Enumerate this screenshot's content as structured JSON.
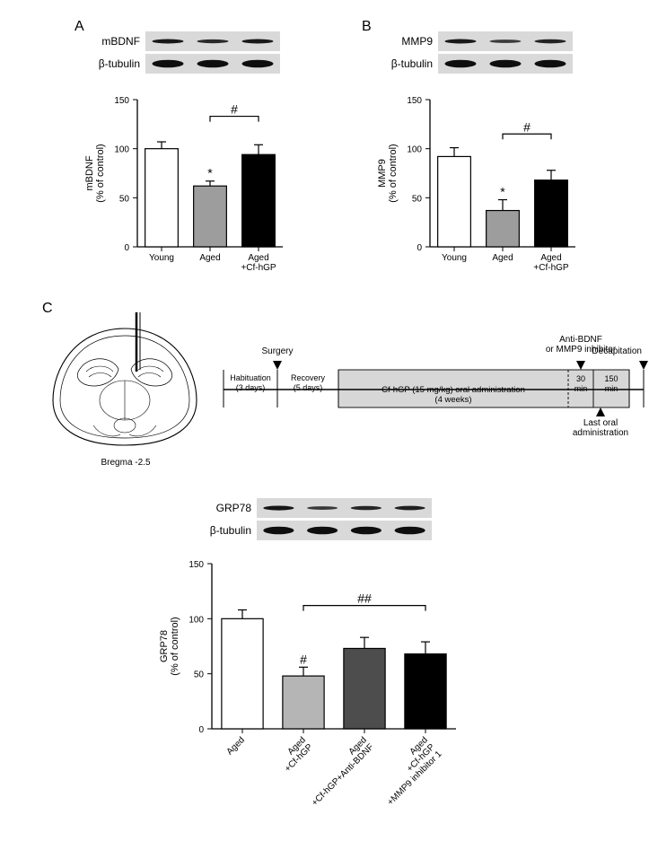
{
  "panels": {
    "A": {
      "label": "A",
      "blot1_label": "mBDNF",
      "blot2_label": "β-tubulin",
      "lanes": 3,
      "blot1_intensities": [
        0.8,
        0.55,
        0.78
      ],
      "blot2_intensities": [
        0.95,
        0.95,
        0.95
      ],
      "chart": {
        "type": "bar",
        "ylabel": "mBDNF\n(% of control)",
        "categories": [
          "Young",
          "Aged",
          "Aged\n+Cf-hGP"
        ],
        "values": [
          100,
          62,
          94
        ],
        "errors": [
          7,
          5,
          10
        ],
        "ylim": [
          0,
          150
        ],
        "ytick_step": 50,
        "bar_fill": [
          "#ffffff",
          "#9d9d9d",
          "#000000"
        ],
        "bar_stroke": "#000000",
        "sig_above_bar": [
          "",
          "*",
          ""
        ],
        "bracket": {
          "from": 1,
          "to": 2,
          "label": "#",
          "y": 133
        }
      }
    },
    "B": {
      "label": "B",
      "blot1_label": "MMP9",
      "blot2_label": "β-tubulin",
      "lanes": 3,
      "blot1_intensities": [
        0.8,
        0.3,
        0.65
      ],
      "blot2_intensities": [
        0.95,
        0.95,
        0.95
      ],
      "chart": {
        "type": "bar",
        "ylabel": "MMP9\n(% of control)",
        "categories": [
          "Young",
          "Aged",
          "Aged\n+Cf-hGP"
        ],
        "values": [
          92,
          37,
          68
        ],
        "errors": [
          9,
          11,
          10
        ],
        "ylim": [
          0,
          150
        ],
        "ytick_step": 50,
        "bar_fill": [
          "#ffffff",
          "#9d9d9d",
          "#000000"
        ],
        "bar_stroke": "#000000",
        "sig_above_bar": [
          "",
          "*",
          ""
        ],
        "bracket": {
          "from": 1,
          "to": 2,
          "label": "#",
          "y": 115
        }
      }
    },
    "C": {
      "label": "C",
      "brain_caption": "Bregma  -2.5",
      "timeline": {
        "habituation": "Habituation\n(3 days)",
        "surgery": "Surgery",
        "recovery": "Recovery\n(5 days)",
        "treatment": "Cf-hGP (15 mg/kg) oral administration\n(4 weeks)",
        "inject": "Anti-BDNF\nor MMP9 inhibitor",
        "interval1": "30\nmin",
        "interval2": "150\nmin",
        "last": "Last oral\nadministration",
        "decap": "Decapitation"
      },
      "blot1_label": "GRP78",
      "blot2_label": "β-tubulin",
      "lanes": 4,
      "blot1_intensities": [
        0.85,
        0.35,
        0.62,
        0.7
      ],
      "blot2_intensities": [
        0.95,
        0.95,
        0.95,
        0.95
      ],
      "chart": {
        "type": "bar",
        "ylabel": "GRP78\n(% of control)",
        "categories": [
          "Aged",
          "Aged\n+Cf-hGP",
          "Aged\n+Cf-hGP+Anti-BDNF",
          "Aged\n+Cf-hGP\n+MMP9 inhibitor 1"
        ],
        "values": [
          100,
          48,
          73,
          68
        ],
        "errors": [
          8,
          8,
          10,
          11
        ],
        "ylim": [
          0,
          150
        ],
        "ytick_step": 50,
        "bar_fill": [
          "#ffffff",
          "#b5b5b5",
          "#4d4d4d",
          "#000000"
        ],
        "bar_stroke": "#000000",
        "sig_above_bar": [
          "",
          "#",
          "",
          ""
        ],
        "bracket": {
          "from": 1,
          "to": 3,
          "label": "##",
          "y": 112
        }
      }
    }
  },
  "colors": {
    "bg": "#ffffff",
    "axis": "#000000",
    "text": "#000000",
    "blot_bg": "#d9d9d9",
    "timeline_fill": "#d7d7d7"
  },
  "fontsize": {
    "panel_label": 16,
    "blot_label": 12,
    "axis_label": 11,
    "tick": 10,
    "category": 10,
    "sig": 14
  }
}
